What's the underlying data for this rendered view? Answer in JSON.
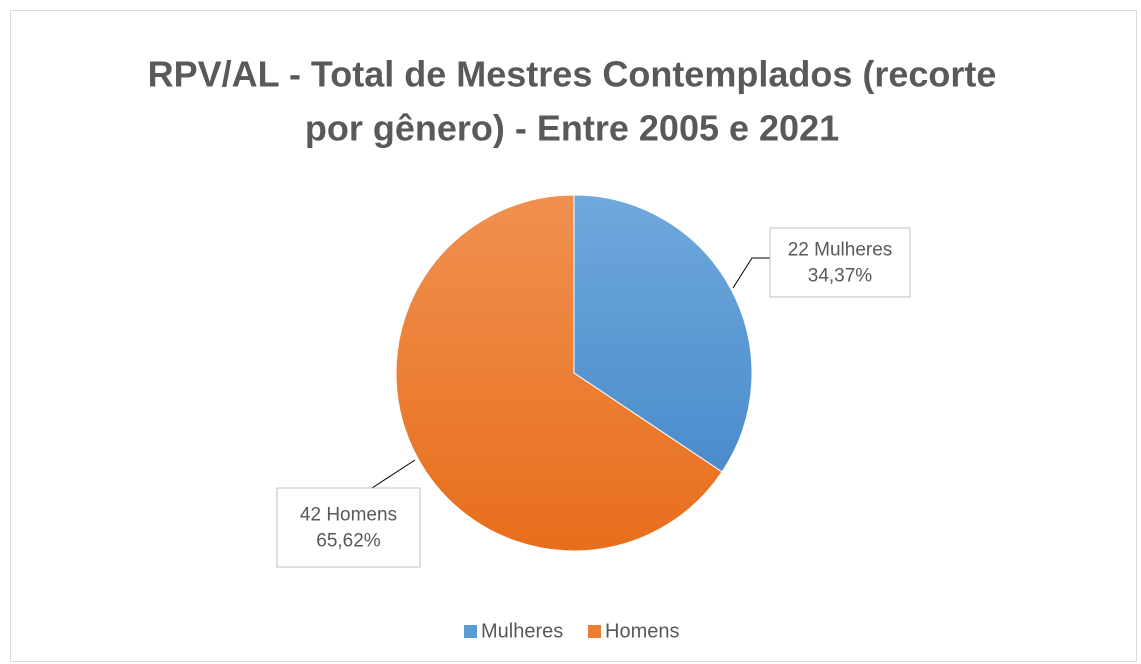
{
  "chart_data": {
    "type": "pie",
    "title": [
      "RPV/AL - Total de Mestres Contemplados (recorte",
      "por gênero) - Entre 2005 e 2021"
    ],
    "categories": [
      "Mulheres",
      "Homens"
    ],
    "values": [
      22,
      42
    ],
    "value_labels": [
      "22 Mulheres",
      "42 Homens"
    ],
    "percents": [
      34.37,
      65.62
    ],
    "percent_labels": [
      "34,37%",
      "65,62%"
    ],
    "colors": [
      "#5b9bd5",
      "#ed7d31"
    ],
    "legend": "bottom"
  }
}
